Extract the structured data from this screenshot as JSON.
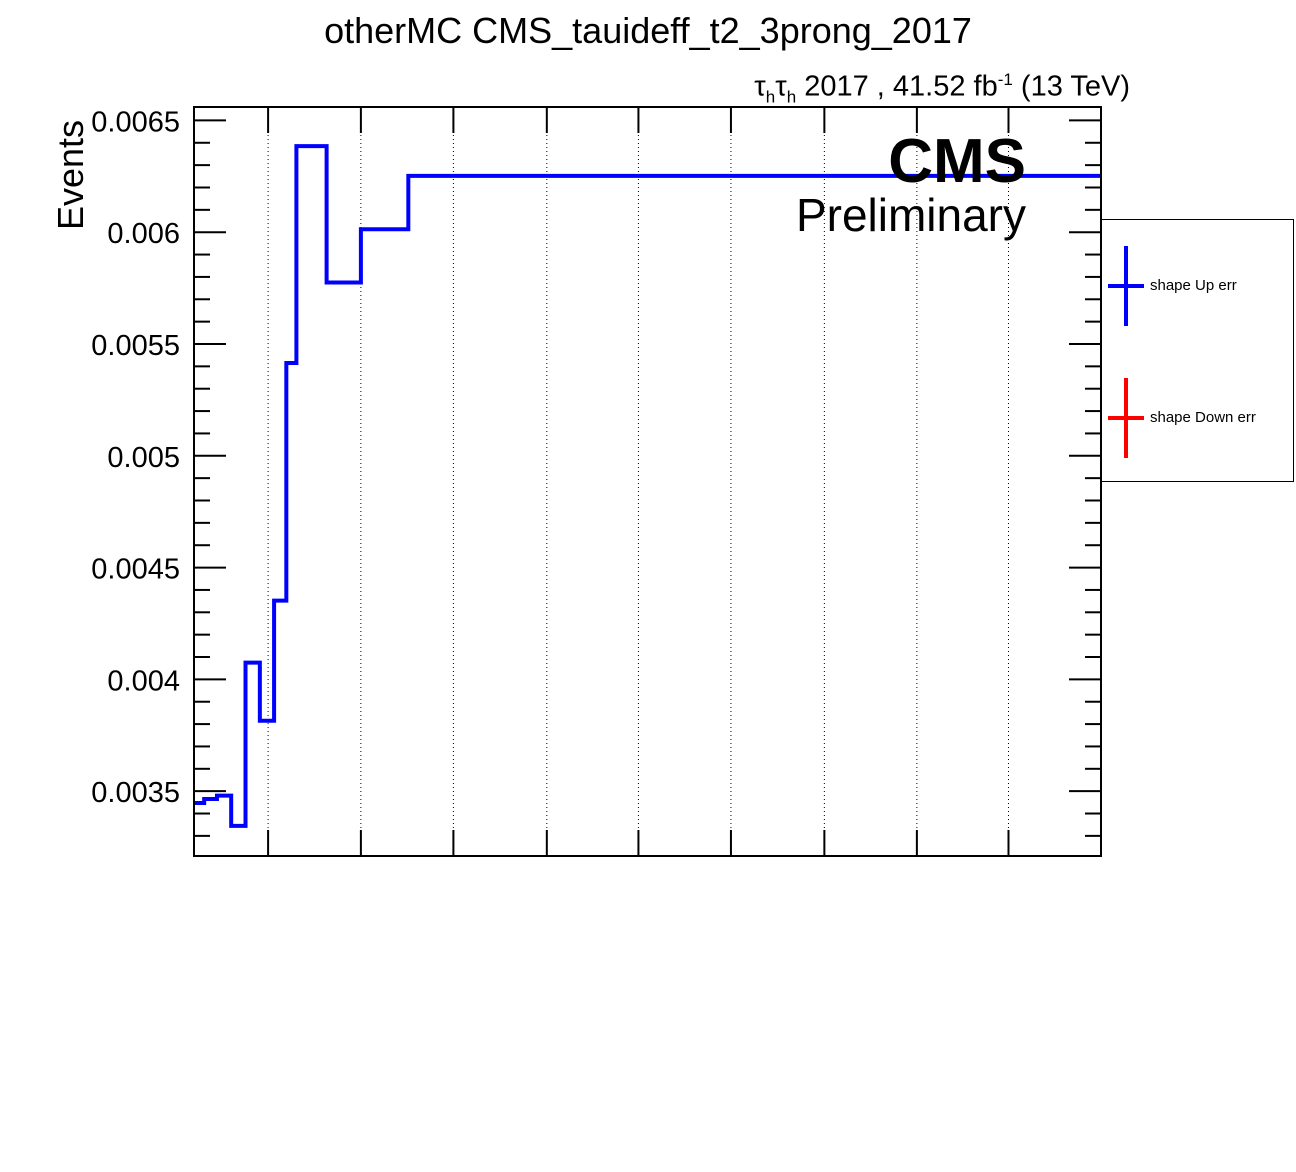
{
  "title": "otherMC CMS_tauideff_t2_3prong_2017",
  "lumi": {
    "tau_symbol": "τ",
    "sub": "h",
    "text": "2017 , 41.52 fb",
    "sup": "-1",
    "energy": "(13 TeV)"
  },
  "cms_label": "CMS",
  "preliminary_label": "Preliminary",
  "legend": {
    "entries": [
      {
        "label": "shape Up err",
        "color": "#0000ff"
      },
      {
        "label": "shape Down err",
        "color": "#ff0000"
      }
    ]
  },
  "chart_data": {
    "type": "line",
    "title": "otherMC CMS_tauideff_t2_3prong_2017",
    "xlabel": "",
    "ylabel": "Events",
    "ylim": [
      0.00321,
      0.00656
    ],
    "xlim": [
      0,
      1
    ],
    "grid": "vertical dotted",
    "yticks": [
      "0.0035",
      "0.004",
      "0.0045",
      "0.005",
      "0.0055",
      "0.006",
      "0.0065"
    ],
    "ytick_values": [
      0.0035,
      0.004,
      0.0045,
      0.005,
      0.0055,
      0.006,
      0.0065
    ],
    "xgrid_values": [
      0.0817,
      0.184,
      0.286,
      0.389,
      0.49,
      0.592,
      0.695,
      0.797,
      0.898
    ],
    "series": [
      {
        "name": "shape Up err",
        "color": "#0000ff",
        "step": "histogram",
        "edges": [
          0.0,
          0.0112,
          0.0253,
          0.041,
          0.0568,
          0.0726,
          0.0883,
          0.1018,
          0.1129,
          0.1462,
          0.184,
          0.2363,
          1.0
        ],
        "values": [
          0.003447,
          0.003465,
          0.00348,
          0.003345,
          0.004075,
          0.003815,
          0.004352,
          0.005415,
          0.006385,
          0.005775,
          0.006013,
          0.006252
        ]
      },
      {
        "name": "shape Down err",
        "color": "#ff0000",
        "step": "histogram",
        "edges": [],
        "values": []
      }
    ]
  }
}
